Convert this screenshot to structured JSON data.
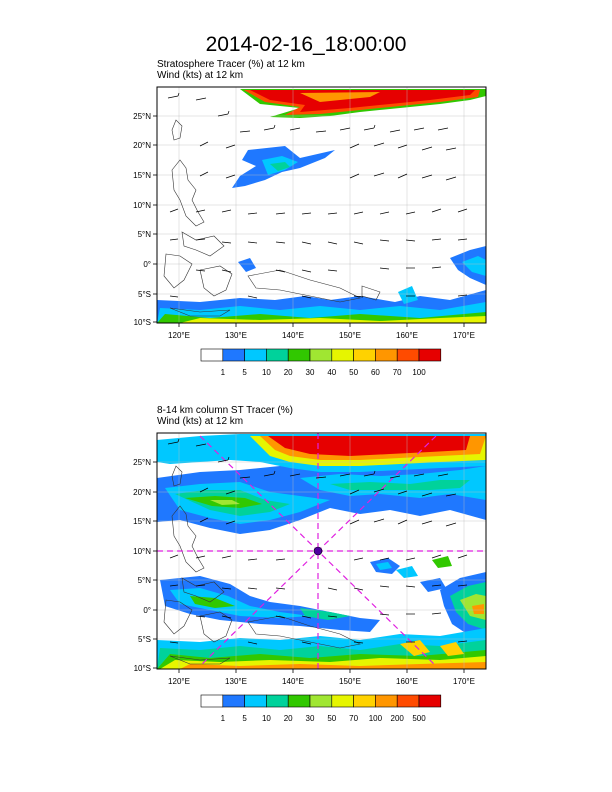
{
  "title": "2014-02-16_18:00:00",
  "panels": [
    {
      "field_line": "Stratosphere Tracer   (%)     at   12 km",
      "wind_line": "Wind    (kts)      at   12 km",
      "lat_labels": [
        "25°N",
        "20°N",
        "15°N",
        "10°N",
        "5°N",
        "0°",
        "5°S",
        "10°S"
      ],
      "lon_labels": [
        "120°E",
        "130°E",
        "140°E",
        "150°E",
        "160°E",
        "170°E"
      ],
      "colorbar_labels": [
        "1",
        "5",
        "10",
        "20",
        "30",
        "40",
        "50",
        "60",
        "70",
        "100"
      ],
      "colorbar_colors": [
        "#ffffff",
        "#1f78ff",
        "#00c8ff",
        "#00d29b",
        "#31c800",
        "#a0e632",
        "#e6f500",
        "#ffd200",
        "#ff9600",
        "#ff4b00",
        "#e60000"
      ]
    },
    {
      "field_line": "8-14 km column ST Tracer    (%)",
      "wind_line": "Wind    (kts)      at   12 km",
      "lat_labels": [
        "25°N",
        "20°N",
        "15°N",
        "10°N",
        "5°N",
        "0°",
        "5°S",
        "10°S"
      ],
      "lon_labels": [
        "120°E",
        "130°E",
        "140°E",
        "150°E",
        "160°E",
        "170°E"
      ],
      "colorbar_labels": [
        "1",
        "5",
        "10",
        "20",
        "30",
        "50",
        "70",
        "100",
        "200",
        "500"
      ],
      "colorbar_colors": [
        "#ffffff",
        "#1f78ff",
        "#00c8ff",
        "#00d29b",
        "#31c800",
        "#a0e632",
        "#e6f500",
        "#ffd200",
        "#ff9600",
        "#ff4b00",
        "#e60000"
      ]
    }
  ]
}
